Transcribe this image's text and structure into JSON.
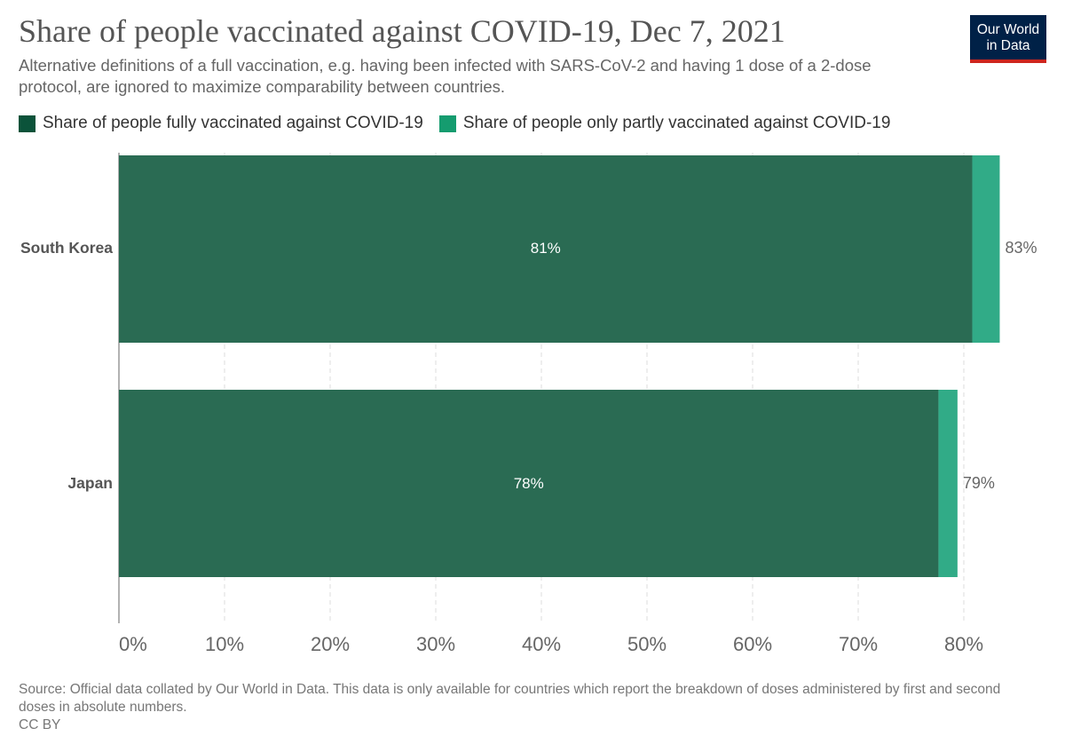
{
  "header": {
    "title": "Share of people vaccinated against COVID-19, Dec 7, 2021",
    "subtitle": "Alternative definitions of a full vaccination, e.g. having been infected with SARS-CoV-2 and having 1 dose of a 2-dose protocol, are ignored to maximize comparability between countries."
  },
  "logo": {
    "line1": "Our World",
    "line2": "in Data"
  },
  "colors": {
    "fully": "#2a6b53",
    "partly": "#31ab87",
    "legend_fully": "#0b533a",
    "legend_partly": "#159c6f",
    "grid": "#dddddd",
    "axis": "#999999",
    "logo_bg": "#002147",
    "logo_bar": "#ce261e"
  },
  "chart_data": {
    "type": "bar",
    "orientation": "horizontal",
    "stacked": true,
    "title": "Share of people vaccinated against COVID-19, Dec 7, 2021",
    "categories": [
      "South Korea",
      "Japan"
    ],
    "series": [
      {
        "name": "Share of people fully vaccinated against COVID-19",
        "values": [
          80.8,
          77.6
        ],
        "labels": [
          "81%",
          "78%"
        ]
      },
      {
        "name": "Share of people only partly vaccinated against COVID-19",
        "values": [
          2.6,
          1.8
        ]
      }
    ],
    "totals": [
      83.4,
      79.4
    ],
    "total_labels": [
      "83%",
      "79%"
    ],
    "xlim": [
      0,
      84
    ],
    "xticks": [
      0,
      10,
      20,
      30,
      40,
      50,
      60,
      70,
      80
    ],
    "xtick_labels": [
      "0%",
      "10%",
      "20%",
      "30%",
      "40%",
      "50%",
      "60%",
      "70%",
      "80%"
    ],
    "grid": true,
    "legend_position": "top"
  },
  "footer": {
    "source": "Source: Official data collated by Our World in Data. This data is only available for countries which report the breakdown of doses administered by first and second doses in absolute numbers.",
    "license": "CC BY"
  }
}
